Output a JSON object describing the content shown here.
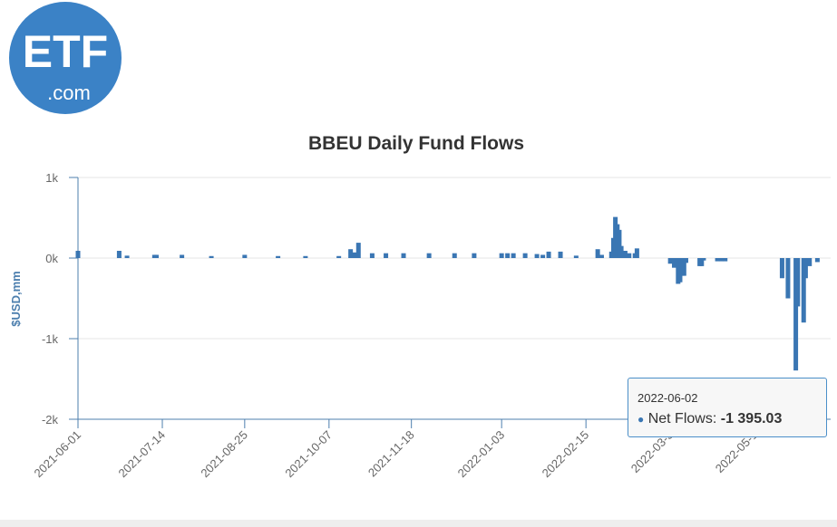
{
  "logo": {
    "text_main": "ETF",
    "text_sub": ".com",
    "color": "#3b82c6"
  },
  "tooltip": {
    "date": "2022-06-02",
    "series_label": "Net Flows:",
    "value_text": "-1 395.03"
  },
  "colors": {
    "bar": "#3a76b3",
    "axis": "#4d7fae",
    "grid": "#e6e6e6"
  },
  "chart_data": {
    "type": "bar",
    "title": "BBEU Daily Fund Flows",
    "ylabel": "$USD,mm",
    "xlabel": "",
    "ylim": [
      -2000,
      1000
    ],
    "yticks": [
      1000,
      0,
      -1000,
      -2000
    ],
    "ytick_labels": [
      "1k",
      "0k",
      "-1k",
      "-2k"
    ],
    "xlim": [
      "2021-06-01",
      "2022-06-10"
    ],
    "xticks": [
      "2021-06-01",
      "2021-07-14",
      "2021-08-25",
      "2021-10-07",
      "2021-11-18",
      "2022-01-03",
      "2022-02-15",
      "2022-03-30",
      "2022-05-12"
    ],
    "xtick_labels": [
      "2021-06-01",
      "2021-07-14",
      "2021-08-25",
      "2021-10-07",
      "2021-11-18",
      "2022-01-03",
      "2022-02-15",
      "2022-03-3",
      "2022-05-1"
    ],
    "series": [
      {
        "name": "Net Flows",
        "points": [
          [
            "2021-06-01",
            90
          ],
          [
            "2021-06-22",
            90
          ],
          [
            "2021-06-26",
            30
          ],
          [
            "2021-07-10",
            40
          ],
          [
            "2021-07-11",
            40
          ],
          [
            "2021-07-24",
            40
          ],
          [
            "2021-08-08",
            25
          ],
          [
            "2021-08-25",
            40
          ],
          [
            "2021-09-11",
            25
          ],
          [
            "2021-09-25",
            25
          ],
          [
            "2021-10-12",
            25
          ],
          [
            "2021-10-18",
            110
          ],
          [
            "2021-10-20",
            70
          ],
          [
            "2021-10-22",
            190
          ],
          [
            "2021-10-29",
            60
          ],
          [
            "2021-11-05",
            60
          ],
          [
            "2021-11-14",
            60
          ],
          [
            "2021-11-27",
            60
          ],
          [
            "2021-12-10",
            60
          ],
          [
            "2021-12-20",
            60
          ],
          [
            "2022-01-03",
            60
          ],
          [
            "2022-01-06",
            60
          ],
          [
            "2022-01-09",
            60
          ],
          [
            "2022-01-15",
            60
          ],
          [
            "2022-01-21",
            50
          ],
          [
            "2022-01-24",
            40
          ],
          [
            "2022-01-27",
            80
          ],
          [
            "2022-02-02",
            80
          ],
          [
            "2022-02-10",
            30
          ],
          [
            "2022-02-21",
            110
          ],
          [
            "2022-02-23",
            40
          ],
          [
            "2022-02-28",
            80
          ],
          [
            "2022-03-01",
            250
          ],
          [
            "2022-03-02",
            510
          ],
          [
            "2022-03-03",
            420
          ],
          [
            "2022-03-04",
            350
          ],
          [
            "2022-03-05",
            150
          ],
          [
            "2022-03-07",
            90
          ],
          [
            "2022-03-09",
            60
          ],
          [
            "2022-03-12",
            60
          ],
          [
            "2022-03-13",
            120
          ],
          [
            "2022-03-30",
            -70
          ],
          [
            "2022-04-01",
            -120
          ],
          [
            "2022-04-03",
            -320
          ],
          [
            "2022-04-04",
            -300
          ],
          [
            "2022-04-05",
            -220
          ],
          [
            "2022-04-06",
            -220
          ],
          [
            "2022-04-07",
            -60
          ],
          [
            "2022-04-14",
            -100
          ],
          [
            "2022-04-15",
            -100
          ],
          [
            "2022-04-16",
            -30
          ],
          [
            "2022-04-23",
            -40
          ],
          [
            "2022-04-25",
            -40
          ],
          [
            "2022-04-26",
            -30
          ],
          [
            "2022-04-27",
            -40
          ],
          [
            "2022-05-26",
            -250
          ],
          [
            "2022-05-29",
            -500
          ],
          [
            "2022-06-02",
            -1395.03
          ],
          [
            "2022-06-03",
            -600
          ],
          [
            "2022-06-06",
            -800
          ],
          [
            "2022-06-07",
            -250
          ],
          [
            "2022-06-09",
            -100
          ],
          [
            "2022-06-13",
            -50
          ]
        ]
      }
    ]
  }
}
